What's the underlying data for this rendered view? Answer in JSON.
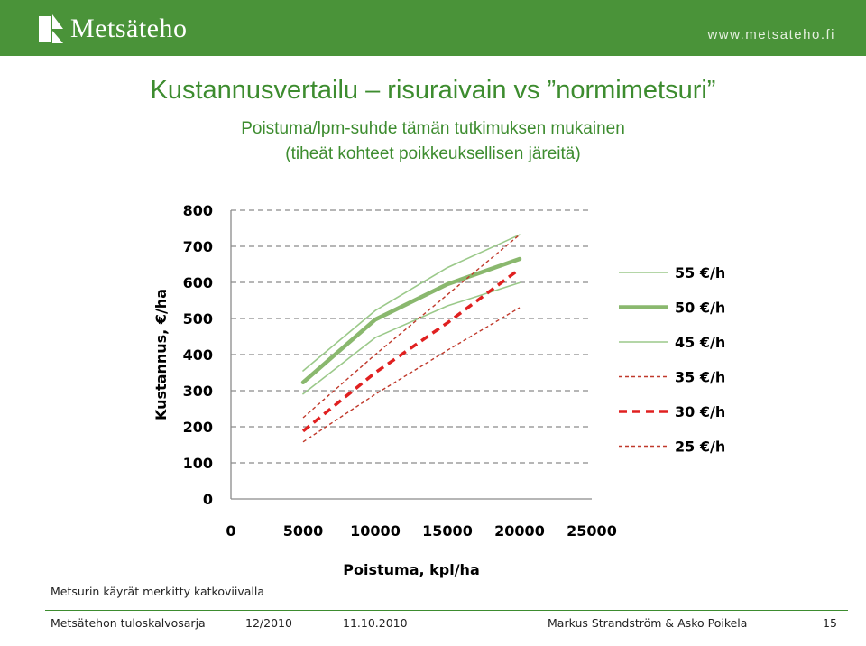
{
  "header": {
    "logo_text": "Metsäteho",
    "site_url": "www.metsateho.fi",
    "colors": {
      "bar": "#4a9339",
      "title": "#3d8c2f"
    }
  },
  "slide": {
    "title": "Kustannusvertailu – risuraivain vs ”normimetsuri”",
    "subtitle_line1": "Poistuma/lpm-suhde tämän tutkimuksen mukainen",
    "subtitle_line2": "(tiheät kohteet poikkeuksellisen järeitä)"
  },
  "chart_data": {
    "type": "line",
    "title": "",
    "xlabel": "Poistuma, kpl/ha",
    "ylabel": "Kustannus, €/ha",
    "xlim": [
      0,
      25000
    ],
    "ylim": [
      0,
      800
    ],
    "x_ticks": [
      "0",
      "5000",
      "10000",
      "15000",
      "20000",
      "25000"
    ],
    "y_ticks": [
      "0",
      "100",
      "200",
      "300",
      "400",
      "500",
      "600",
      "700",
      "800"
    ],
    "grid": "horizontal dashed",
    "legend_position": "right",
    "x": [
      5000,
      10000,
      15000,
      20000
    ],
    "series": [
      {
        "name": "55 €/h",
        "values": [
          355,
          522,
          641,
          732
        ],
        "color": "#9bc98a",
        "style": "solid-thin"
      },
      {
        "name": "50 €/h",
        "values": [
          323,
          497,
          595,
          665
        ],
        "color": "#8ab86e",
        "style": "solid-thick"
      },
      {
        "name": "45 €/h",
        "values": [
          291,
          447,
          535,
          599
        ],
        "color": "#9bc98a",
        "style": "solid-thin"
      },
      {
        "name": "35 €/h",
        "values": [
          225,
          400,
          566,
          732
        ],
        "color": "#c0392b",
        "style": "dashed-thin"
      },
      {
        "name": "30 €/h",
        "values": [
          188,
          350,
          488,
          637
        ],
        "color": "#e02020",
        "style": "dashed-thick"
      },
      {
        "name": "25 €/h",
        "values": [
          158,
          290,
          412,
          530
        ],
        "color": "#c0392b",
        "style": "dashed-thin"
      }
    ]
  },
  "note": "Metsurin käyrät merkitty katkoviivalla",
  "footer": {
    "series_name": "Metsätehon tuloskalvosarja",
    "period": "12/2010",
    "date": "11.10.2010",
    "authors": "Markus Strandström & Asko Poikela",
    "page": "15"
  }
}
